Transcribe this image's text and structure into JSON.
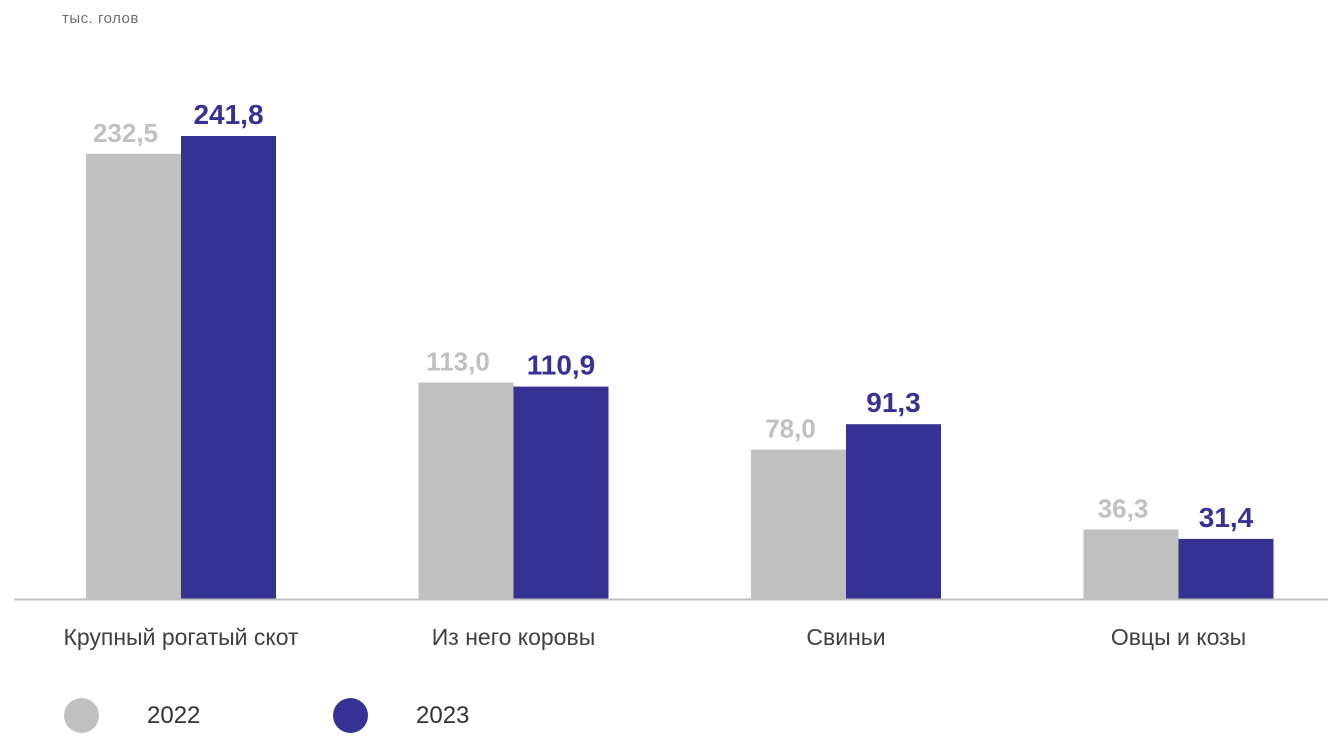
{
  "chart_data": {
    "type": "bar",
    "ylabel": "тыс. голов",
    "categories": [
      "Крупный рогатый скот",
      "Из него коровы",
      "Свиньи",
      "Овцы и козы"
    ],
    "series": [
      {
        "name": "2022",
        "values": [
          232.5,
          113.0,
          78.0,
          36.3
        ],
        "value_labels": [
          "232,5",
          "113,0",
          "78,0",
          "36,3"
        ],
        "color": "#c0c0c0"
      },
      {
        "name": "2023",
        "values": [
          241.8,
          110.9,
          91.3,
          31.4
        ],
        "value_labels": [
          "241,8",
          "110,9",
          "91,3",
          "31,4"
        ],
        "color": "#363294"
      }
    ],
    "ylim": [
      0,
      241.8
    ],
    "grid": false,
    "legend_position": "bottom-left"
  }
}
